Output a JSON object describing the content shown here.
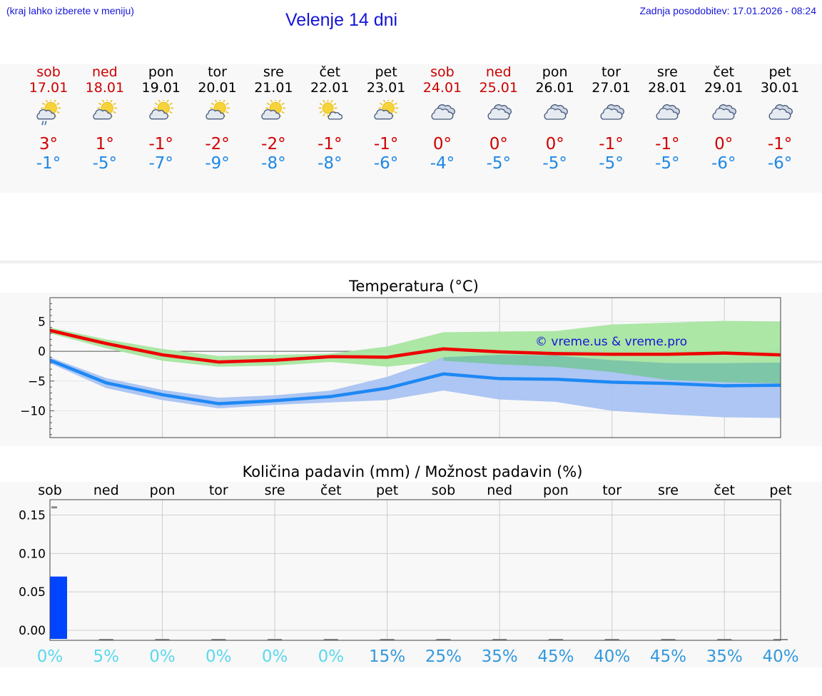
{
  "header": {
    "left_note": "(kraj lahko izberete v meniju)",
    "title": "Velenje 14 dni",
    "updated": "Zadnja posodobitev: 17.01.2026 - 08:24"
  },
  "days": [
    {
      "name": "sob",
      "date": "17.01",
      "tmax": "3°",
      "tmin": "-1°",
      "icon": "sun-cloud-rain-icon",
      "weekend": true
    },
    {
      "name": "ned",
      "date": "18.01",
      "tmax": "1°",
      "tmin": "-5°",
      "icon": "sun-cloud-icon",
      "weekend": true
    },
    {
      "name": "pon",
      "date": "19.01",
      "tmax": "-1°",
      "tmin": "-7°",
      "icon": "sun-cloud-icon",
      "weekend": false
    },
    {
      "name": "tor",
      "date": "20.01",
      "tmax": "-2°",
      "tmin": "-9°",
      "icon": "sun-cloud-icon",
      "weekend": false
    },
    {
      "name": "sre",
      "date": "21.01",
      "tmax": "-2°",
      "tmin": "-8°",
      "icon": "sun-cloud-icon",
      "weekend": false
    },
    {
      "name": "čet",
      "date": "22.01",
      "tmax": "-1°",
      "tmin": "-8°",
      "icon": "sun-small-cloud-icon",
      "weekend": false
    },
    {
      "name": "pet",
      "date": "23.01",
      "tmax": "-1°",
      "tmin": "-6°",
      "icon": "sun-cloud-icon",
      "weekend": false
    },
    {
      "name": "sob",
      "date": "24.01",
      "tmax": "0°",
      "tmin": "-4°",
      "icon": "cloudy-icon",
      "weekend": true
    },
    {
      "name": "ned",
      "date": "25.01",
      "tmax": "0°",
      "tmin": "-5°",
      "icon": "cloudy-icon",
      "weekend": true
    },
    {
      "name": "pon",
      "date": "26.01",
      "tmax": "0°",
      "tmin": "-5°",
      "icon": "cloudy-icon",
      "weekend": false
    },
    {
      "name": "tor",
      "date": "27.01",
      "tmax": "-1°",
      "tmin": "-5°",
      "icon": "cloudy-icon",
      "weekend": false
    },
    {
      "name": "sre",
      "date": "28.01",
      "tmax": "-1°",
      "tmin": "-5°",
      "icon": "cloudy-icon",
      "weekend": false
    },
    {
      "name": "čet",
      "date": "29.01",
      "tmax": "0°",
      "tmin": "-6°",
      "icon": "cloudy-icon",
      "weekend": false
    },
    {
      "name": "pet",
      "date": "30.01",
      "tmax": "-1°",
      "tmin": "-6°",
      "icon": "cloudy-icon",
      "weekend": false
    }
  ],
  "colors": {
    "max_line": "#ee0000",
    "min_line": "#1e88f5",
    "max_band": "#a8e6a0",
    "min_band": "#a9c3f2",
    "overlap_band": "#7dc6a8",
    "bar": "#0044ff",
    "weekend": "#cc0000",
    "title": "#1515d8",
    "chance_low": "#5ad8ee",
    "chance_high": "#3399dd"
  },
  "chart_data": [
    {
      "type": "line",
      "title": "Temperatura (°C)",
      "watermark": "© vreme.us & vreme.pro",
      "x": [
        0,
        1,
        2,
        3,
        4,
        5,
        6,
        7,
        8,
        9,
        10,
        11,
        12,
        13
      ],
      "ylim": [
        -14.5,
        9
      ],
      "yticks": [
        5,
        0,
        -5,
        -10
      ],
      "ytick_labels": [
        "5",
        "0",
        "−5",
        "−10"
      ],
      "series": [
        {
          "name": "max",
          "values": [
            3.5,
            1.3,
            -0.6,
            -1.8,
            -1.5,
            -0.9,
            -1.0,
            0.4,
            -0.1,
            -0.4,
            -0.5,
            -0.5,
            -0.3,
            -0.6
          ],
          "band_upper": [
            4.0,
            2.0,
            0.4,
            -0.8,
            -0.6,
            -0.4,
            0.8,
            3.2,
            3.3,
            3.4,
            4.5,
            4.8,
            5.1,
            5.0
          ],
          "band_lower": [
            3.0,
            0.5,
            -1.6,
            -2.6,
            -2.4,
            -1.8,
            -2.6,
            -1.6,
            -2.2,
            -2.6,
            -3.5,
            -4.8,
            -5.2,
            -5.4
          ]
        },
        {
          "name": "min",
          "values": [
            -1.5,
            -5.3,
            -7.3,
            -8.8,
            -8.3,
            -7.6,
            -6.2,
            -3.8,
            -4.6,
            -4.7,
            -5.2,
            -5.4,
            -5.8,
            -5.7
          ],
          "band_upper": [
            -1.0,
            -4.5,
            -6.5,
            -7.8,
            -7.4,
            -6.6,
            -4.3,
            -1.0,
            -0.6,
            -0.7,
            -1.5,
            -2.0,
            -2.0,
            -1.9
          ],
          "band_lower": [
            -2.0,
            -6.2,
            -8.2,
            -9.6,
            -9.0,
            -8.6,
            -8.2,
            -6.6,
            -8.1,
            -8.5,
            -10.0,
            -10.6,
            -11.1,
            -11.2
          ]
        }
      ]
    },
    {
      "type": "bar",
      "title": "Količina padavin (mm) / Možnost padavin (%)",
      "categories": [
        "sob",
        "ned",
        "pon",
        "tor",
        "sre",
        "čet",
        "pet",
        "sob",
        "ned",
        "pon",
        "tor",
        "sre",
        "čet",
        "pet"
      ],
      "values": [
        0.07,
        0,
        0,
        0,
        0,
        0,
        0,
        0,
        0,
        0,
        0,
        0,
        0,
        0
      ],
      "ylim": [
        -0.013,
        0.17
      ],
      "yticks": [
        0.15,
        0.1,
        0.05,
        0.0
      ],
      "ytick_labels": [
        "0.15",
        "0.10",
        "0.05",
        "0.00"
      ],
      "chance_labels": [
        "0%",
        "5%",
        "0%",
        "0%",
        "0%",
        "0%",
        "15%",
        "25%",
        "35%",
        "45%",
        "40%",
        "45%",
        "35%",
        "40%"
      ],
      "chance_values": [
        0,
        5,
        0,
        0,
        0,
        0,
        15,
        25,
        35,
        45,
        40,
        45,
        35,
        40
      ]
    }
  ]
}
